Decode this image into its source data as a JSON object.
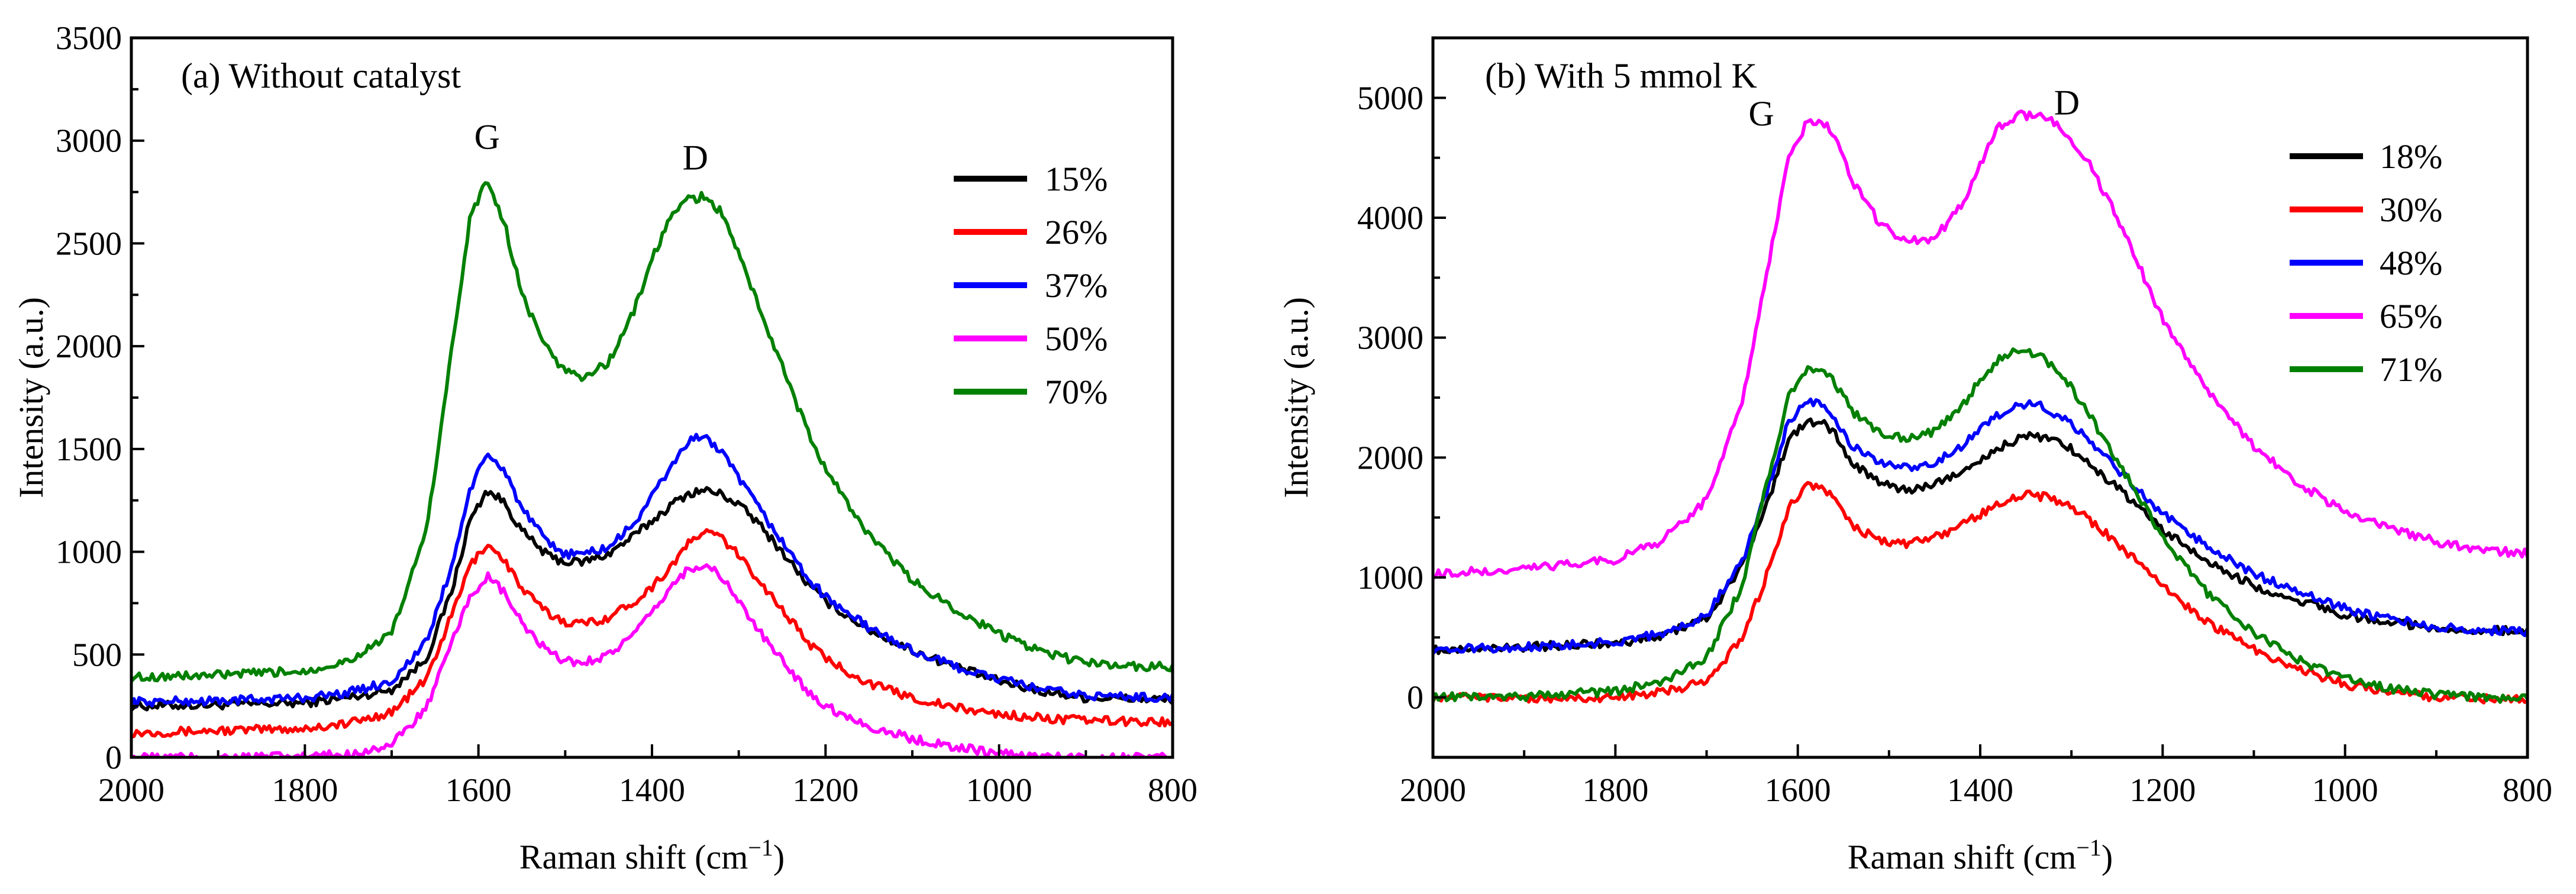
{
  "chart_data": [
    {
      "type": "line",
      "title": "(a) Without catalyst",
      "xlabel": "Raman shift (cm",
      "xlabel_sup": "−1",
      "xlabel_end": ")",
      "ylabel": "Intensity (a.u.)",
      "xlim": [
        2000,
        800
      ],
      "ylim": [
        0,
        3500
      ],
      "xticks": [
        2000,
        1800,
        1600,
        1400,
        1200,
        1000,
        800
      ],
      "yticks": [
        0,
        500,
        1000,
        1500,
        2000,
        2500,
        3000,
        3500
      ],
      "legend_position": "top-right",
      "annotations": [
        {
          "text": "G",
          "x": 1590,
          "y": 2960
        },
        {
          "text": "D",
          "x": 1350,
          "y": 2860
        }
      ],
      "series": [
        {
          "name": "15%",
          "color": "#000000",
          "x": [
            2000,
            1900,
            1800,
            1750,
            1700,
            1660,
            1630,
            1610,
            1590,
            1570,
            1550,
            1520,
            1500,
            1480,
            1450,
            1420,
            1400,
            1380,
            1360,
            1340,
            1320,
            1300,
            1280,
            1250,
            1220,
            1200,
            1150,
            1100,
            1050,
            1000,
            950,
            900,
            850,
            800
          ],
          "y": [
            250,
            255,
            265,
            290,
            330,
            480,
            820,
            1150,
            1300,
            1240,
            1100,
            980,
            950,
            950,
            990,
            1080,
            1150,
            1220,
            1280,
            1300,
            1280,
            1230,
            1150,
            1000,
            840,
            760,
            620,
            520,
            440,
            370,
            320,
            290,
            285,
            280
          ]
        },
        {
          "name": "26%",
          "color": "#ff0000",
          "x": [
            2000,
            1900,
            1800,
            1750,
            1700,
            1660,
            1630,
            1610,
            1590,
            1570,
            1550,
            1520,
            1500,
            1480,
            1450,
            1420,
            1400,
            1380,
            1360,
            1340,
            1320,
            1300,
            1280,
            1250,
            1220,
            1200,
            1150,
            1100,
            1050,
            1000,
            950,
            900,
            850,
            800
          ],
          "y": [
            120,
            130,
            140,
            165,
            220,
            380,
            700,
            930,
            1040,
            960,
            820,
            700,
            660,
            650,
            680,
            760,
            830,
            920,
            1030,
            1100,
            1070,
            980,
            880,
            720,
            560,
            480,
            360,
            290,
            240,
            210,
            190,
            180,
            175,
            170
          ]
        },
        {
          "name": "37%",
          "color": "#0000ff",
          "x": [
            2000,
            1900,
            1800,
            1750,
            1700,
            1660,
            1630,
            1610,
            1590,
            1570,
            1550,
            1520,
            1500,
            1480,
            1450,
            1420,
            1400,
            1380,
            1360,
            1340,
            1320,
            1300,
            1280,
            1250,
            1220,
            1200,
            1150,
            1100,
            1050,
            1000,
            950,
            900,
            850,
            800
          ],
          "y": [
            270,
            275,
            290,
            315,
            370,
            560,
            940,
            1300,
            1470,
            1400,
            1210,
            1040,
            990,
            990,
            1020,
            1140,
            1270,
            1400,
            1530,
            1570,
            1480,
            1360,
            1230,
            1050,
            870,
            780,
            630,
            520,
            440,
            380,
            330,
            300,
            295,
            290
          ]
        },
        {
          "name": "50%",
          "color": "#ff00ff",
          "x": [
            2000,
            1900,
            1800,
            1750,
            1700,
            1660,
            1630,
            1610,
            1590,
            1570,
            1550,
            1520,
            1500,
            1480,
            1450,
            1420,
            1400,
            1380,
            1360,
            1340,
            1320,
            1300,
            1280,
            1250,
            1220,
            1200,
            1150,
            1100,
            1050,
            1000,
            950,
            900,
            850,
            800
          ],
          "y": [
            0,
            0,
            5,
            15,
            60,
            240,
            560,
            780,
            880,
            800,
            650,
            510,
            470,
            460,
            500,
            600,
            700,
            820,
            910,
            940,
            880,
            760,
            630,
            470,
            320,
            250,
            150,
            90,
            50,
            20,
            5,
            0,
            0,
            0
          ]
        },
        {
          "name": "70%",
          "color": "#008000",
          "x": [
            2000,
            1900,
            1800,
            1750,
            1700,
            1660,
            1630,
            1610,
            1590,
            1570,
            1550,
            1520,
            1500,
            1480,
            1450,
            1420,
            1400,
            1380,
            1360,
            1340,
            1320,
            1300,
            1280,
            1250,
            1220,
            1200,
            1150,
            1100,
            1050,
            1000,
            950,
            900,
            850,
            800
          ],
          "y": [
            390,
            400,
            420,
            470,
            600,
            1100,
            2000,
            2620,
            2810,
            2600,
            2250,
            1980,
            1880,
            1850,
            1920,
            2180,
            2420,
            2620,
            2710,
            2730,
            2650,
            2450,
            2230,
            1900,
            1580,
            1400,
            1080,
            860,
            720,
            600,
            510,
            460,
            445,
            440
          ]
        }
      ]
    },
    {
      "type": "line",
      "title": "(b) With 5 mmol K",
      "xlabel": "Raman shift (cm",
      "xlabel_sup": "−1",
      "xlabel_end": ")",
      "ylabel": "Intensity (a.u.)",
      "xlim": [
        2000,
        800
      ],
      "ylim": [
        -500,
        5500
      ],
      "xticks": [
        2000,
        1800,
        1600,
        1400,
        1200,
        1000,
        800
      ],
      "yticks": [
        0,
        1000,
        2000,
        3000,
        4000,
        5000
      ],
      "legend_position": "top-right",
      "annotations": [
        {
          "text": "G",
          "x": 1640,
          "y": 4770
        },
        {
          "text": "D",
          "x": 1305,
          "y": 4860
        }
      ],
      "series": [
        {
          "name": "18%",
          "color": "#000000",
          "x": [
            2000,
            1900,
            1800,
            1750,
            1700,
            1660,
            1630,
            1610,
            1590,
            1575,
            1560,
            1540,
            1510,
            1480,
            1450,
            1420,
            1400,
            1380,
            1360,
            1340,
            1320,
            1300,
            1280,
            1250,
            1220,
            1200,
            1150,
            1100,
            1050,
            1000,
            950,
            900,
            850,
            800
          ],
          "y": [
            400,
            420,
            450,
            520,
            650,
            1100,
            1700,
            2150,
            2300,
            2300,
            2200,
            1950,
            1800,
            1720,
            1780,
            1880,
            1980,
            2080,
            2150,
            2180,
            2150,
            2070,
            1950,
            1750,
            1550,
            1400,
            1130,
            930,
            800,
            690,
            620,
            580,
            560,
            550
          ]
        },
        {
          "name": "30%",
          "color": "#ff0000",
          "x": [
            2000,
            1900,
            1800,
            1750,
            1700,
            1660,
            1630,
            1610,
            1590,
            1575,
            1560,
            1540,
            1510,
            1480,
            1450,
            1420,
            1400,
            1380,
            1360,
            1340,
            1320,
            1300,
            1280,
            1250,
            1220,
            1200,
            1150,
            1100,
            1050,
            1000,
            950,
            900,
            850,
            800
          ],
          "y": [
            0,
            -10,
            0,
            40,
            130,
            500,
            1100,
            1580,
            1760,
            1780,
            1650,
            1430,
            1310,
            1280,
            1330,
            1440,
            1530,
            1620,
            1680,
            1690,
            1650,
            1580,
            1480,
            1290,
            1080,
            920,
            620,
            400,
            230,
            110,
            40,
            0,
            -10,
            -10
          ]
        },
        {
          "name": "48%",
          "color": "#0000ff",
          "x": [
            2000,
            1900,
            1800,
            1750,
            1700,
            1660,
            1630,
            1610,
            1590,
            1575,
            1560,
            1540,
            1510,
            1480,
            1450,
            1420,
            1400,
            1380,
            1360,
            1340,
            1320,
            1300,
            1280,
            1250,
            1220,
            1200,
            1150,
            1100,
            1050,
            1000,
            950,
            900,
            850,
            800
          ],
          "y": [
            400,
            420,
            460,
            530,
            680,
            1150,
            1800,
            2300,
            2480,
            2450,
            2330,
            2100,
            1950,
            1920,
            1960,
            2100,
            2230,
            2360,
            2430,
            2450,
            2380,
            2270,
            2140,
            1900,
            1680,
            1540,
            1250,
            1030,
            870,
            740,
            650,
            590,
            560,
            550
          ]
        },
        {
          "name": "65%",
          "color": "#ff00ff",
          "x": [
            2000,
            1900,
            1800,
            1750,
            1700,
            1660,
            1630,
            1610,
            1590,
            1575,
            1560,
            1540,
            1510,
            1480,
            1450,
            1420,
            1400,
            1380,
            1360,
            1340,
            1320,
            1300,
            1280,
            1250,
            1220,
            1200,
            1150,
            1100,
            1050,
            1000,
            950,
            900,
            850,
            800
          ],
          "y": [
            1030,
            1070,
            1150,
            1300,
            1650,
            2500,
            3700,
            4500,
            4800,
            4820,
            4700,
            4300,
            3950,
            3800,
            3830,
            4100,
            4450,
            4750,
            4850,
            4860,
            4800,
            4650,
            4450,
            4000,
            3500,
            3150,
            2550,
            2100,
            1780,
            1550,
            1400,
            1300,
            1230,
            1200
          ]
        },
        {
          "name": "71%",
          "color": "#008000",
          "x": [
            2000,
            1900,
            1800,
            1750,
            1700,
            1660,
            1630,
            1610,
            1590,
            1575,
            1560,
            1540,
            1510,
            1480,
            1450,
            1420,
            1400,
            1380,
            1360,
            1340,
            1320,
            1300,
            1280,
            1250,
            1220,
            1200,
            1150,
            1100,
            1050,
            1000,
            950,
            900,
            850,
            800
          ],
          "y": [
            0,
            10,
            50,
            130,
            330,
            950,
            1900,
            2520,
            2730,
            2760,
            2630,
            2380,
            2200,
            2150,
            2220,
            2430,
            2650,
            2820,
            2900,
            2870,
            2770,
            2580,
            2350,
            1980,
            1600,
            1320,
            860,
            530,
            310,
            160,
            70,
            20,
            0,
            -10
          ]
        }
      ]
    }
  ]
}
